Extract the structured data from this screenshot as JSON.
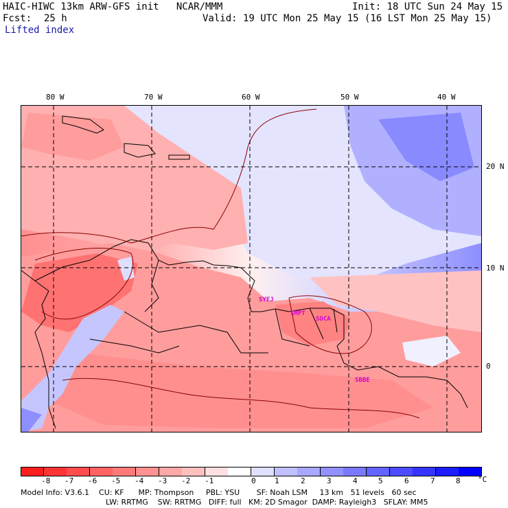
{
  "header": {
    "title_left": "HAIC-HIWC 13km ARW-GFS init   NCAR/MMM",
    "init": "Init: 18 UTC Sun 24 May 15",
    "fcst_label": "Fcst:",
    "fcst_value": "25 h",
    "valid": "Valid: 19 UTC Mon 25 May 15 (16 LST Mon 25 May 15)",
    "field": "Lifted index"
  },
  "map": {
    "lon_labels": [
      "80 W",
      "70 W",
      "60 W",
      "50 W",
      "40 W"
    ],
    "lat_labels": [
      "20 N",
      "10 N",
      "0"
    ],
    "stations": [
      "SYEJ",
      "SMPT",
      "SOCA",
      "SBBE"
    ]
  },
  "colorbar": {
    "colors": [
      "#ff1d1d",
      "#ff3535",
      "#ff4d4d",
      "#ff6464",
      "#ff7a7a",
      "#ff9191",
      "#ffa8a8",
      "#ffc0c0",
      "#ffe0e0",
      "#ffffff",
      "#e0e0ff",
      "#c0c0ff",
      "#a8a8ff",
      "#9191ff",
      "#7a7aff",
      "#6464ff",
      "#4d4dff",
      "#3535ff",
      "#1d1dff",
      "#0000ff"
    ],
    "labels": [
      "-8",
      "-7",
      "-6",
      "-5",
      "-4",
      "-3",
      "-2",
      "-1",
      "0",
      "1",
      "2",
      "3",
      "4",
      "5",
      "6",
      "7",
      "8"
    ],
    "unit": "°C"
  },
  "footer": {
    "line1": "Model Info: V3.6.1    CU: KF      MP: Thompson     PBL: YSU       SF: Noah LSM     13 km   51 levels   60 sec",
    "line2": "LW: RRTMG    SW: RRTMG   DIFF: full   KM: 2D Smagor  DAMP: Rayleigh3   SFLAY: MM5"
  }
}
